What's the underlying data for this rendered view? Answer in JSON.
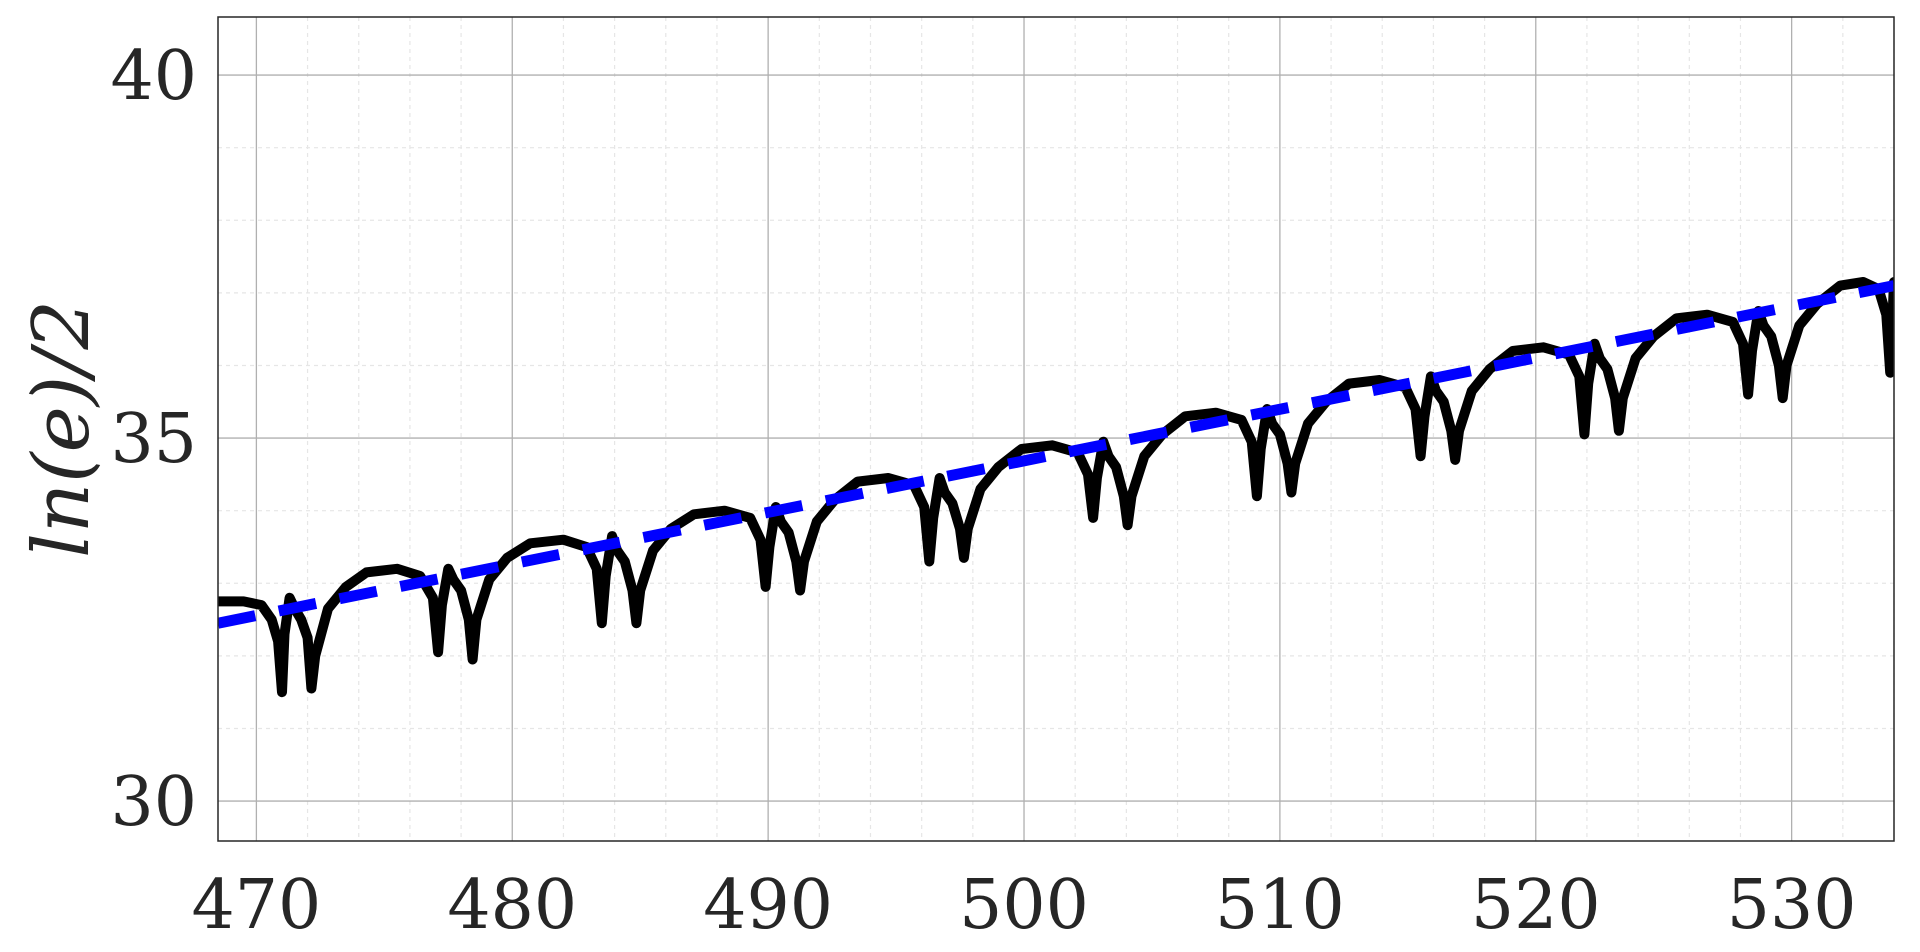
{
  "chart_data": {
    "type": "line",
    "title": "",
    "xlabel": "",
    "ylabel": "ln(e)/2",
    "xlim": [
      468.5,
      534
    ],
    "ylim": [
      29.45,
      40.8
    ],
    "xticks": [
      470,
      480,
      490,
      500,
      510,
      520,
      530
    ],
    "xtick_labels": [
      "470",
      "480",
      "490",
      "500",
      "510",
      "520",
      "530"
    ],
    "yticks": [
      30,
      35,
      40
    ],
    "ytick_labels": [
      "30",
      "35",
      "40"
    ],
    "x_minor_step": 2,
    "y_minor_step": 1,
    "grid": true,
    "box": true,
    "series": [
      {
        "style": "solid",
        "color": "#000000",
        "period": 6.4,
        "x_start": 468.5,
        "x_end": 534,
        "points": [
          [
            468.5,
            32.75
          ],
          [
            469.5,
            32.75
          ],
          [
            470.2,
            32.7
          ],
          [
            470.6,
            32.5
          ],
          [
            470.85,
            32.2
          ],
          [
            471.0,
            31.5
          ],
          [
            471.1,
            32.3
          ],
          [
            471.3,
            32.8
          ],
          [
            471.5,
            32.65
          ],
          [
            471.75,
            32.5
          ],
          [
            472.0,
            32.25
          ],
          [
            472.15,
            31.55
          ],
          [
            472.3,
            32.0
          ],
          [
            472.8,
            32.65
          ],
          [
            473.5,
            32.95
          ],
          [
            474.3,
            33.15
          ],
          [
            475.5,
            33.2
          ],
          [
            476.4,
            33.1
          ],
          [
            476.9,
            32.8
          ],
          [
            477.1,
            32.05
          ],
          [
            477.25,
            32.7
          ],
          [
            477.5,
            33.2
          ],
          [
            477.7,
            33.05
          ],
          [
            478.0,
            32.9
          ],
          [
            478.3,
            32.5
          ],
          [
            478.45,
            31.95
          ],
          [
            478.6,
            32.5
          ],
          [
            479.1,
            33.05
          ],
          [
            479.8,
            33.35
          ],
          [
            480.7,
            33.55
          ],
          [
            482.0,
            33.6
          ],
          [
            482.9,
            33.5
          ],
          [
            483.3,
            33.2
          ],
          [
            483.5,
            32.45
          ],
          [
            483.65,
            33.1
          ],
          [
            483.9,
            33.65
          ],
          [
            484.1,
            33.45
          ],
          [
            484.4,
            33.3
          ],
          [
            484.7,
            32.9
          ],
          [
            484.85,
            32.45
          ],
          [
            485.0,
            32.9
          ],
          [
            485.5,
            33.45
          ],
          [
            486.2,
            33.75
          ],
          [
            487.1,
            33.95
          ],
          [
            488.3,
            34.0
          ],
          [
            489.3,
            33.9
          ],
          [
            489.7,
            33.6
          ],
          [
            489.9,
            32.95
          ],
          [
            490.05,
            33.5
          ],
          [
            490.3,
            34.05
          ],
          [
            490.5,
            33.85
          ],
          [
            490.8,
            33.7
          ],
          [
            491.1,
            33.3
          ],
          [
            491.25,
            32.9
          ],
          [
            491.4,
            33.3
          ],
          [
            491.9,
            33.85
          ],
          [
            492.6,
            34.15
          ],
          [
            493.5,
            34.4
          ],
          [
            494.7,
            34.45
          ],
          [
            495.7,
            34.35
          ],
          [
            496.1,
            34.05
          ],
          [
            496.3,
            33.3
          ],
          [
            496.45,
            33.9
          ],
          [
            496.7,
            34.45
          ],
          [
            496.9,
            34.25
          ],
          [
            497.2,
            34.1
          ],
          [
            497.5,
            33.75
          ],
          [
            497.65,
            33.35
          ],
          [
            497.8,
            33.75
          ],
          [
            498.3,
            34.3
          ],
          [
            499.0,
            34.6
          ],
          [
            499.9,
            34.85
          ],
          [
            501.1,
            34.9
          ],
          [
            502.1,
            34.8
          ],
          [
            502.5,
            34.5
          ],
          [
            502.7,
            33.9
          ],
          [
            502.85,
            34.45
          ],
          [
            503.1,
            34.95
          ],
          [
            503.3,
            34.75
          ],
          [
            503.6,
            34.6
          ],
          [
            503.9,
            34.2
          ],
          [
            504.05,
            33.8
          ],
          [
            504.2,
            34.2
          ],
          [
            504.7,
            34.75
          ],
          [
            505.4,
            35.05
          ],
          [
            506.3,
            35.3
          ],
          [
            507.5,
            35.35
          ],
          [
            508.5,
            35.25
          ],
          [
            508.9,
            34.95
          ],
          [
            509.1,
            34.2
          ],
          [
            509.25,
            34.85
          ],
          [
            509.5,
            35.4
          ],
          [
            509.7,
            35.2
          ],
          [
            510.0,
            35.05
          ],
          [
            510.3,
            34.65
          ],
          [
            510.45,
            34.25
          ],
          [
            510.6,
            34.65
          ],
          [
            511.1,
            35.2
          ],
          [
            511.8,
            35.5
          ],
          [
            512.7,
            35.75
          ],
          [
            513.9,
            35.8
          ],
          [
            514.9,
            35.7
          ],
          [
            515.3,
            35.4
          ],
          [
            515.5,
            34.75
          ],
          [
            515.65,
            35.3
          ],
          [
            515.9,
            35.85
          ],
          [
            516.1,
            35.65
          ],
          [
            516.4,
            35.5
          ],
          [
            516.7,
            35.1
          ],
          [
            516.85,
            34.7
          ],
          [
            517.0,
            35.1
          ],
          [
            517.5,
            35.65
          ],
          [
            518.2,
            35.95
          ],
          [
            519.1,
            36.2
          ],
          [
            520.3,
            36.25
          ],
          [
            521.3,
            36.15
          ],
          [
            521.7,
            35.85
          ],
          [
            521.9,
            35.05
          ],
          [
            522.05,
            35.75
          ],
          [
            522.3,
            36.3
          ],
          [
            522.5,
            36.1
          ],
          [
            522.8,
            35.95
          ],
          [
            523.1,
            35.55
          ],
          [
            523.25,
            35.1
          ],
          [
            523.4,
            35.55
          ],
          [
            523.9,
            36.1
          ],
          [
            524.6,
            36.4
          ],
          [
            525.5,
            36.65
          ],
          [
            526.7,
            36.7
          ],
          [
            527.7,
            36.6
          ],
          [
            528.1,
            36.3
          ],
          [
            528.3,
            35.6
          ],
          [
            528.45,
            36.2
          ],
          [
            528.7,
            36.75
          ],
          [
            528.9,
            36.55
          ],
          [
            529.2,
            36.4
          ],
          [
            529.5,
            36.0
          ],
          [
            529.65,
            35.55
          ],
          [
            529.8,
            36.0
          ],
          [
            530.3,
            36.55
          ],
          [
            531.0,
            36.85
          ],
          [
            531.9,
            37.1
          ],
          [
            532.8,
            37.15
          ],
          [
            533.4,
            37.05
          ],
          [
            533.7,
            36.7
          ],
          [
            533.85,
            35.9
          ],
          [
            534.0,
            37.15
          ]
        ]
      },
      {
        "style": "dashed",
        "color": "#0000ff",
        "x": [
          468.5,
          534
        ],
        "y": [
          32.45,
          37.1
        ]
      }
    ]
  }
}
